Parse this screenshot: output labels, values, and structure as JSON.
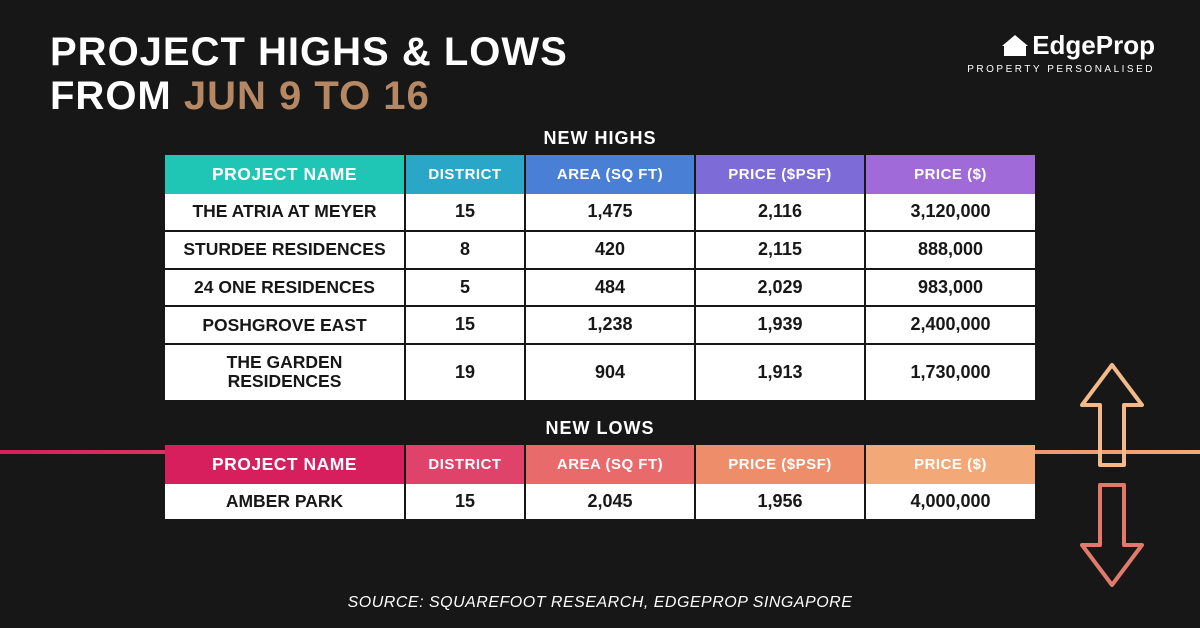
{
  "title": {
    "line1": "PROJECT HIGHS & LOWS",
    "line2_prefix": "FROM ",
    "date_range": "JUN 9 TO 16"
  },
  "accent_color": "#b58863",
  "logo": {
    "name": "EdgeProp",
    "tagline": "PROPERTY PERSONALISED"
  },
  "highs": {
    "label": "NEW HIGHS",
    "header_gradient": [
      "#1fc6b5",
      "#2aa6c9",
      "#4a7fd6",
      "#7d6bd8",
      "#a06bd8"
    ],
    "columns": [
      "PROJECT NAME",
      "DISTRICT",
      "AREA (SQ FT)",
      "PRICE ($PSF)",
      "PRICE ($)"
    ],
    "rows": [
      {
        "name": "THE ATRIA AT MEYER",
        "district": "15",
        "area": "1,475",
        "psf": "2,116",
        "price": "3,120,000"
      },
      {
        "name": "STURDEE RESIDENCES",
        "district": "8",
        "area": "420",
        "psf": "2,115",
        "price": "888,000"
      },
      {
        "name": "24 ONE RESIDENCES",
        "district": "5",
        "area": "484",
        "psf": "2,029",
        "price": "983,000"
      },
      {
        "name": "POSHGROVE EAST",
        "district": "15",
        "area": "1,238",
        "psf": "1,939",
        "price": "2,400,000"
      },
      {
        "name": "THE GARDEN RESIDENCES",
        "district": "19",
        "area": "904",
        "psf": "1,913",
        "price": "1,730,000"
      }
    ]
  },
  "lows": {
    "label": "NEW LOWS",
    "header_gradient": [
      "#d61f5c",
      "#e0436a",
      "#e86a6a",
      "#ee8d6a",
      "#f3a977"
    ],
    "columns": [
      "PROJECT NAME",
      "DISTRICT",
      "AREA (SQ FT)",
      "PRICE ($PSF)",
      "PRICE ($)"
    ],
    "rows": [
      {
        "name": "AMBER PARK",
        "district": "15",
        "area": "2,045",
        "psf": "1,956",
        "price": "4,000,000"
      }
    ]
  },
  "arrow_colors": {
    "up": "#f2b98a",
    "down": "#e27a6c"
  },
  "source": "SOURCE: SQUAREFOOT RESEARCH, EDGEPROP SINGAPORE",
  "background_color": "#171717",
  "text_color_dark": "#171717",
  "text_color_light": "#ffffff"
}
